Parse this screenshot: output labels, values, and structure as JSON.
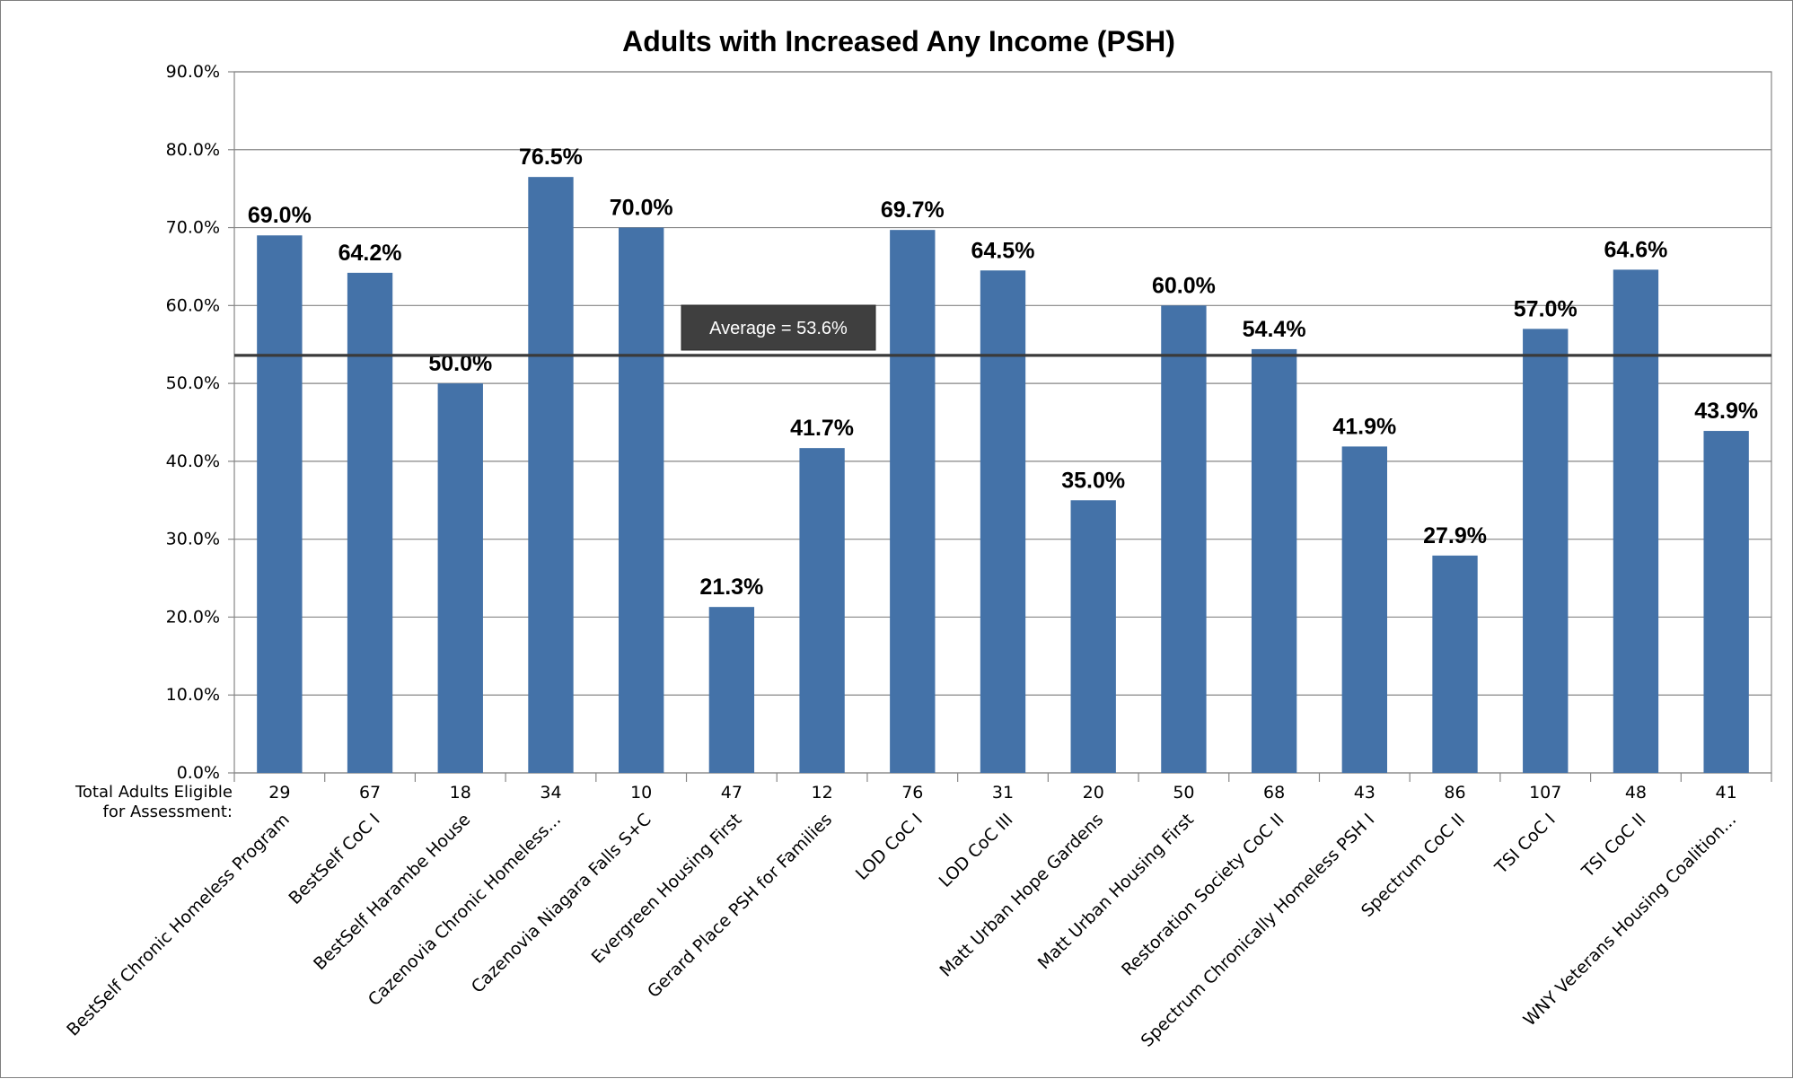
{
  "chart_data": {
    "type": "bar",
    "title": "Adults with Increased Any Income (PSH)",
    "categories": [
      "BestSelf Chronic Homeless Program",
      "BestSelf CoC I",
      "BestSelf Harambe House",
      "Cazenovia Chronic Homeless...",
      "Cazenovia Niagara Falls S+C",
      "Evergreen Housing First",
      "Gerard Place PSH for Families",
      "LOD CoC I",
      "LOD CoC III",
      "Matt Urban Hope Gardens",
      "Matt Urban Housing First",
      "Restoration Society CoC II",
      "Spectrum Chronically Homeless PSH I",
      "Spectrum CoC II",
      "TSI CoC I",
      "TSI CoC II",
      "WNY Veterans Housing Coalition..."
    ],
    "values": [
      69.0,
      64.2,
      50.0,
      76.5,
      70.0,
      21.3,
      41.7,
      69.7,
      64.5,
      35.0,
      60.0,
      54.4,
      41.9,
      27.9,
      57.0,
      64.6,
      43.9
    ],
    "data_labels": [
      "69.0%",
      "64.2%",
      "50.0%",
      "76.5%",
      "70.0%",
      "21.3%",
      "41.7%",
      "69.7%",
      "64.5%",
      "35.0%",
      "60.0%",
      "54.4%",
      "41.9%",
      "27.9%",
      "57.0%",
      "64.6%",
      "43.9%"
    ],
    "ylim": [
      0,
      90
    ],
    "yticks": [
      "0.0%",
      "10.0%",
      "20.0%",
      "30.0%",
      "40.0%",
      "50.0%",
      "60.0%",
      "70.0%",
      "80.0%",
      "90.0%"
    ],
    "grid": true,
    "legend": "none",
    "bar_color": "#4472a8",
    "average": {
      "value": 53.6,
      "label": "Average =  53.6%"
    },
    "eligible_row": {
      "label_line1": "Total Adults Eligible",
      "label_line2": "for Assessment:",
      "values": [
        "29",
        "67",
        "18",
        "34",
        "10",
        "47",
        "12",
        "76",
        "31",
        "20",
        "50",
        "68",
        "43",
        "86",
        "107",
        "48",
        "41"
      ]
    }
  }
}
